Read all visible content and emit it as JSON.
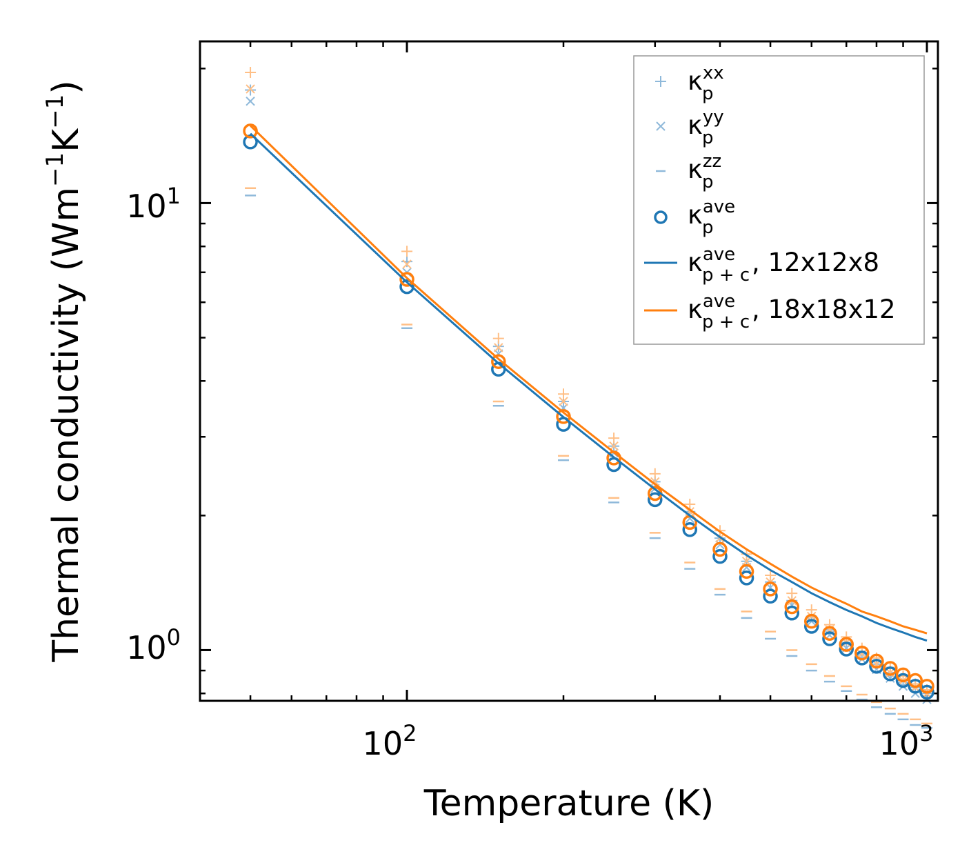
{
  "chart_data": {
    "type": "scatter",
    "scale": {
      "x": "log",
      "y": "log"
    },
    "xlim": [
      40,
      1050
    ],
    "ylim": [
      0.77,
      23
    ],
    "xlabel": "Temperature (K)",
    "ylabel": {
      "text": "Thermal conductivity (Wm",
      "exp1": "−1",
      "mid": "K",
      "exp2": "−1",
      "close": ")"
    },
    "x_ticks": [
      {
        "value": 100,
        "base": "10",
        "exp": "2"
      },
      {
        "value": 1000,
        "base": "10",
        "exp": "3"
      }
    ],
    "y_ticks": [
      {
        "value": 1,
        "base": "10",
        "exp": "0"
      },
      {
        "value": 10,
        "base": "10",
        "exp": "1"
      }
    ],
    "temperatures": [
      50,
      100,
      150,
      200,
      250,
      300,
      350,
      400,
      450,
      500,
      550,
      600,
      650,
      700,
      750,
      800,
      850,
      900,
      950,
      1000
    ],
    "series": [
      {
        "name": "12x12x8",
        "color": "#1f77b4",
        "kappa_xx": [
          17.9,
          7.4,
          4.78,
          3.6,
          2.86,
          2.38,
          2.04,
          1.78,
          1.58,
          1.42,
          1.29,
          1.19,
          1.11,
          1.04,
          0.98,
          0.93,
          0.89,
          0.855,
          0.825,
          0.8
        ],
        "kappa_yy": [
          16.9,
          7.0,
          4.6,
          3.48,
          2.76,
          2.3,
          1.97,
          1.72,
          1.53,
          1.38,
          1.26,
          1.16,
          1.08,
          1.01,
          0.955,
          0.905,
          0.865,
          0.83,
          0.8,
          0.775
        ],
        "kappa_zz": [
          10.4,
          5.25,
          3.52,
          2.66,
          2.14,
          1.78,
          1.52,
          1.33,
          1.18,
          1.06,
          0.97,
          0.9,
          0.85,
          0.81,
          0.775,
          0.745,
          0.72,
          0.7,
          0.68,
          0.67
        ],
        "kappa_ave": [
          13.7,
          6.5,
          4.25,
          3.2,
          2.6,
          2.17,
          1.86,
          1.62,
          1.45,
          1.32,
          1.21,
          1.13,
          1.06,
          1.005,
          0.96,
          0.92,
          0.885,
          0.855,
          0.83,
          0.805
        ],
        "kappa_pc_ave": [
          14.3,
          6.65,
          4.38,
          3.32,
          2.7,
          2.29,
          2.0,
          1.79,
          1.63,
          1.51,
          1.42,
          1.34,
          1.28,
          1.23,
          1.19,
          1.15,
          1.12,
          1.095,
          1.07,
          1.05
        ]
      },
      {
        "name": "18x18x12",
        "color": "#ff7f0e",
        "kappa_xx": [
          19.6,
          7.8,
          4.98,
          3.74,
          2.98,
          2.48,
          2.12,
          1.85,
          1.64,
          1.47,
          1.34,
          1.23,
          1.14,
          1.07,
          1.01,
          0.96,
          0.915,
          0.875,
          0.84,
          0.815
        ],
        "kappa_yy": [
          18.0,
          7.3,
          4.75,
          3.6,
          2.86,
          2.38,
          2.04,
          1.78,
          1.58,
          1.42,
          1.29,
          1.19,
          1.11,
          1.04,
          0.98,
          0.93,
          0.89,
          0.855,
          0.825,
          0.8
        ],
        "kappa_zz": [
          10.8,
          5.35,
          3.6,
          2.72,
          2.19,
          1.83,
          1.57,
          1.37,
          1.22,
          1.1,
          1.0,
          0.93,
          0.875,
          0.83,
          0.795,
          0.765,
          0.74,
          0.72,
          0.7,
          0.685
        ],
        "kappa_ave": [
          14.5,
          6.75,
          4.42,
          3.33,
          2.69,
          2.24,
          1.93,
          1.68,
          1.5,
          1.37,
          1.25,
          1.16,
          1.09,
          1.03,
          0.985,
          0.945,
          0.91,
          0.88,
          0.855,
          0.83
        ],
        "kappa_pc_ave": [
          14.9,
          6.8,
          4.48,
          3.4,
          2.77,
          2.35,
          2.06,
          1.84,
          1.68,
          1.56,
          1.46,
          1.38,
          1.32,
          1.27,
          1.22,
          1.19,
          1.16,
          1.13,
          1.11,
          1.09
        ]
      }
    ],
    "legend": {
      "position": "top-right",
      "entries": [
        {
          "marker": "plus",
          "sym": "κ",
          "sub": "p",
          "sup": "xx",
          "suffix": ""
        },
        {
          "marker": "x",
          "sym": "κ",
          "sub": "p",
          "sup": "yy",
          "suffix": ""
        },
        {
          "marker": "dash",
          "sym": "κ",
          "sub": "p",
          "sup": "zz",
          "suffix": ""
        },
        {
          "marker": "circle",
          "sym": "κ",
          "sub": "p",
          "sup": "ave",
          "suffix": ""
        },
        {
          "marker": "line-blue",
          "sym": "κ",
          "sub": "p + c",
          "sup": "ave",
          "suffix": ", 12x12x8"
        },
        {
          "marker": "line-orange",
          "sym": "κ",
          "sub": "p + c",
          "sup": "ave",
          "suffix": ", 18x18x12"
        }
      ]
    },
    "colors": {
      "blue": "#1f77b4",
      "orange": "#ff7f0e",
      "blue_light": "#8fb9da",
      "orange_light": "#ffbf86"
    }
  }
}
